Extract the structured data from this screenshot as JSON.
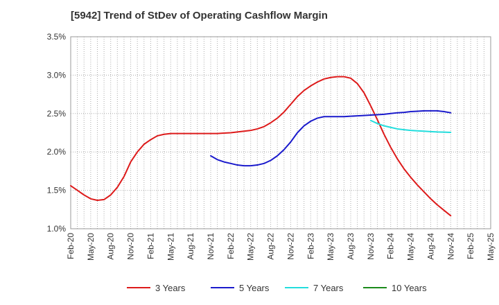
{
  "chart_data": {
    "type": "line",
    "title": "[5942]  Trend of StDev of Operating Cashflow Margin",
    "xlabel": "",
    "ylabel": "",
    "x_ticks": [
      "Feb-20",
      "May-20",
      "Aug-20",
      "Nov-20",
      "Feb-21",
      "May-21",
      "Aug-21",
      "Nov-21",
      "Feb-22",
      "May-22",
      "Aug-22",
      "Nov-22",
      "Feb-23",
      "May-23",
      "Aug-23",
      "Nov-23",
      "Feb-24",
      "May-24",
      "Aug-24",
      "Nov-24",
      "Feb-25",
      "May-25"
    ],
    "y_ticks": [
      "1.0%",
      "1.5%",
      "2.0%",
      "2.5%",
      "3.0%",
      "3.5%"
    ],
    "ylim": [
      1.0,
      3.5
    ],
    "grid": "dotted",
    "legend_position": "bottom",
    "series": [
      {
        "name": "3 Years",
        "color": "#dd1a1a",
        "x": [
          "2020-02",
          "2020-03",
          "2020-04",
          "2020-05",
          "2020-06",
          "2020-07",
          "2020-08",
          "2020-09",
          "2020-10",
          "2020-11",
          "2020-12",
          "2021-01",
          "2021-02",
          "2021-03",
          "2021-04",
          "2021-05",
          "2021-06",
          "2021-07",
          "2021-08",
          "2021-09",
          "2021-10",
          "2021-11",
          "2021-12",
          "2022-01",
          "2022-02",
          "2022-03",
          "2022-04",
          "2022-05",
          "2022-06",
          "2022-07",
          "2022-08",
          "2022-09",
          "2022-10",
          "2022-11",
          "2022-12",
          "2023-01",
          "2023-02",
          "2023-03",
          "2023-04",
          "2023-05",
          "2023-06",
          "2023-07",
          "2023-08",
          "2023-09",
          "2023-10",
          "2023-11",
          "2023-12",
          "2024-01",
          "2024-02",
          "2024-03",
          "2024-04",
          "2024-05",
          "2024-06",
          "2024-07",
          "2024-08",
          "2024-09",
          "2024-10",
          "2024-11"
        ],
        "y": [
          1.56,
          1.5,
          1.44,
          1.39,
          1.37,
          1.38,
          1.44,
          1.54,
          1.68,
          1.87,
          2.0,
          2.1,
          2.16,
          2.21,
          2.23,
          2.24,
          2.24,
          2.24,
          2.24,
          2.24,
          2.24,
          2.24,
          2.24,
          2.245,
          2.25,
          2.26,
          2.27,
          2.28,
          2.3,
          2.33,
          2.38,
          2.44,
          2.52,
          2.62,
          2.72,
          2.8,
          2.86,
          2.91,
          2.95,
          2.97,
          2.98,
          2.98,
          2.96,
          2.89,
          2.77,
          2.6,
          2.42,
          2.23,
          2.06,
          1.91,
          1.78,
          1.67,
          1.57,
          1.48,
          1.39,
          1.31,
          1.24,
          1.17
        ]
      },
      {
        "name": "5 Years",
        "color": "#1a1acc",
        "x": [
          "2021-11",
          "2021-12",
          "2022-01",
          "2022-02",
          "2022-03",
          "2022-04",
          "2022-05",
          "2022-06",
          "2022-07",
          "2022-08",
          "2022-09",
          "2022-10",
          "2022-11",
          "2022-12",
          "2023-01",
          "2023-02",
          "2023-03",
          "2023-04",
          "2023-05",
          "2023-06",
          "2023-07",
          "2023-08",
          "2023-09",
          "2023-10",
          "2023-11",
          "2023-12",
          "2024-01",
          "2024-02",
          "2024-03",
          "2024-04",
          "2024-05",
          "2024-06",
          "2024-07",
          "2024-08",
          "2024-09",
          "2024-10",
          "2024-11"
        ],
        "y": [
          1.95,
          1.9,
          1.87,
          1.85,
          1.83,
          1.82,
          1.82,
          1.83,
          1.85,
          1.89,
          1.95,
          2.03,
          2.13,
          2.25,
          2.34,
          2.4,
          2.44,
          2.46,
          2.46,
          2.46,
          2.46,
          2.465,
          2.47,
          2.475,
          2.48,
          2.485,
          2.49,
          2.5,
          2.51,
          2.515,
          2.525,
          2.53,
          2.535,
          2.535,
          2.535,
          2.525,
          2.51
        ]
      },
      {
        "name": "7 Years",
        "color": "#22dddd",
        "x": [
          "2023-11",
          "2023-12",
          "2024-01",
          "2024-02",
          "2024-03",
          "2024-04",
          "2024-05",
          "2024-06",
          "2024-07",
          "2024-08",
          "2024-09",
          "2024-10",
          "2024-11"
        ],
        "y": [
          2.41,
          2.37,
          2.34,
          2.32,
          2.3,
          2.29,
          2.28,
          2.275,
          2.27,
          2.265,
          2.26,
          2.258,
          2.255
        ]
      },
      {
        "name": "10 Years",
        "color": "#1a8a1a",
        "x": [],
        "y": []
      }
    ]
  }
}
